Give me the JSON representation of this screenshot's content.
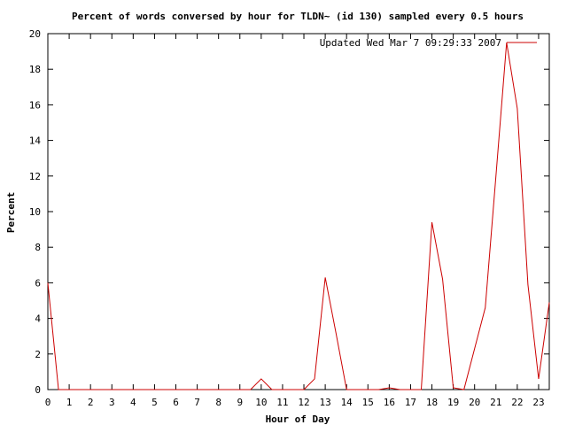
{
  "chart_data": {
    "type": "line",
    "title": "Percent of words conversed by hour for TLDN~ (id 130) sampled every 0.5 hours",
    "xlabel": "Hour of Day",
    "ylabel": "Percent",
    "xlim": [
      0,
      23.5
    ],
    "ylim": [
      0,
      20
    ],
    "x_ticks": [
      0,
      1,
      2,
      3,
      4,
      5,
      6,
      7,
      8,
      9,
      10,
      11,
      12,
      13,
      14,
      15,
      16,
      17,
      18,
      19,
      20,
      21,
      22,
      23
    ],
    "y_ticks": [
      0,
      2,
      4,
      6,
      8,
      10,
      12,
      14,
      16,
      18,
      20
    ],
    "grid": false,
    "legend_position": "top-right",
    "series": [
      {
        "name": "Updated Wed Mar  7 09:29:33 2007",
        "color": "#cc0000",
        "x": [
          0,
          0.5,
          1,
          1.5,
          2,
          2.5,
          3,
          3.5,
          4,
          4.5,
          5,
          5.5,
          6,
          6.5,
          7,
          7.5,
          8,
          8.5,
          9,
          9.5,
          10,
          10.5,
          11,
          11.5,
          12,
          12.5,
          13,
          13.5,
          14,
          14.5,
          15,
          15.5,
          16,
          16.5,
          17,
          17.5,
          18,
          18.5,
          19,
          19.5,
          20,
          20.5,
          21,
          21.5,
          22,
          22.5,
          23,
          23.5
        ],
        "values": [
          6.0,
          0,
          0,
          0,
          0,
          0,
          0,
          0,
          0,
          0,
          0,
          0,
          0,
          0,
          0,
          0,
          0,
          0,
          0,
          0,
          0.6,
          0,
          0,
          0,
          0,
          0.6,
          6.3,
          3.2,
          0,
          0,
          0,
          0,
          0.1,
          0,
          0,
          0,
          9.4,
          6.2,
          0.1,
          0,
          2.3,
          4.6,
          12.0,
          19.5,
          15.8,
          5.9,
          0.6,
          4.9
        ]
      }
    ]
  }
}
